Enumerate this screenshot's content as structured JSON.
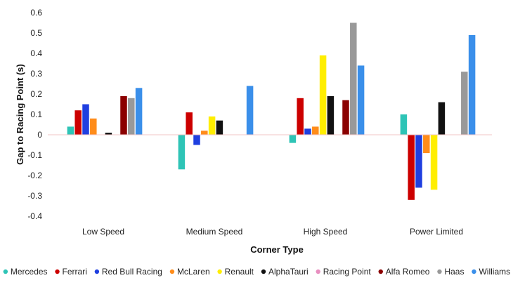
{
  "chart_data": {
    "type": "bar",
    "title": "",
    "xlabel": "Corner Type",
    "ylabel": "Gap to Racing Point (s)",
    "ylim": [
      -0.4,
      0.6
    ],
    "ytick_values": [
      -0.4,
      -0.3,
      -0.2,
      -0.1,
      0,
      0.1,
      0.2,
      0.3,
      0.4,
      0.5,
      0.6
    ],
    "ytick_labels": [
      "-0.4",
      "-0.3",
      "-0.2",
      "-0.1",
      "0",
      "0.1",
      "0.2",
      "0.3",
      "0.4",
      "0.5",
      "0.6"
    ],
    "categories": [
      "Low Speed",
      "Medium Speed",
      "High Speed",
      "Power Limited"
    ],
    "legend_position": "bottom",
    "grid": false,
    "series": [
      {
        "name": "Mercedes",
        "color": "#2ec4b6",
        "values": [
          0.04,
          -0.17,
          -0.04,
          0.1
        ]
      },
      {
        "name": "Ferrari",
        "color": "#cc0000",
        "values": [
          0.12,
          0.11,
          0.18,
          -0.32
        ]
      },
      {
        "name": "Red Bull Racing",
        "color": "#1f3fe0",
        "values": [
          0.15,
          -0.05,
          0.03,
          -0.26
        ]
      },
      {
        "name": "McLaren",
        "color": "#ff8c1a",
        "values": [
          0.08,
          0.02,
          0.04,
          -0.09
        ]
      },
      {
        "name": "Renault",
        "color": "#ffee00",
        "values": [
          0.0,
          0.09,
          0.39,
          -0.27
        ]
      },
      {
        "name": "AlphaTauri",
        "color": "#111111",
        "values": [
          0.01,
          0.07,
          0.19,
          0.16
        ]
      },
      {
        "name": "Racing Point",
        "color": "#e88fc0",
        "values": [
          0,
          0,
          0,
          0
        ]
      },
      {
        "name": "Alfa Romeo",
        "color": "#8b0000",
        "values": [
          0.19,
          0.0,
          0.17,
          0.0
        ]
      },
      {
        "name": "Haas",
        "color": "#999999",
        "values": [
          0.18,
          0.0,
          0.55,
          0.31
        ]
      },
      {
        "name": "Williams",
        "color": "#3a8fea",
        "values": [
          0.23,
          0.24,
          0.34,
          0.49
        ]
      }
    ]
  }
}
